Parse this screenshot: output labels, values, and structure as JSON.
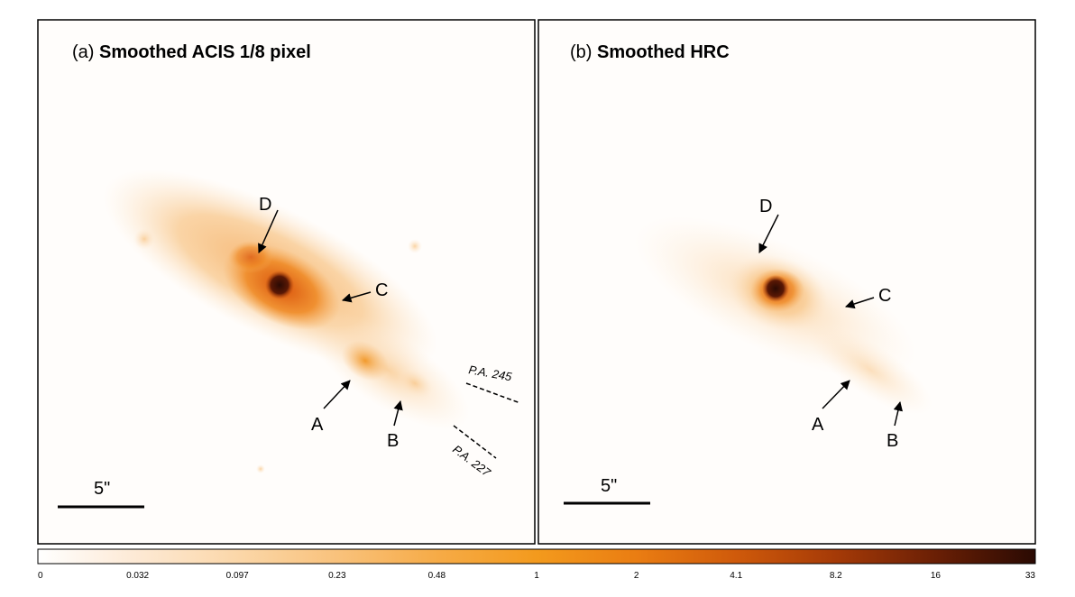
{
  "panels": [
    {
      "id": "a",
      "title_prefix": "(a) ",
      "title_bold": "Smoothed ACIS 1/8 pixel",
      "labels": {
        "A": "A",
        "B": "B",
        "C": "C",
        "D": "D"
      },
      "pa_labels": [
        "P.A. 245",
        "P.A. 227"
      ],
      "scale_label": "5\""
    },
    {
      "id": "b",
      "title_prefix": "(b) ",
      "title_bold": "Smoothed HRC",
      "labels": {
        "A": "A",
        "B": "B",
        "C": "C",
        "D": "D"
      },
      "scale_label": "5\""
    }
  ],
  "colorbar": {
    "ticks": [
      "0",
      "0.032",
      "0.097",
      "0.23",
      "0.48",
      "1",
      "2",
      "4.1",
      "8.2",
      "16",
      "33"
    ],
    "colormap": [
      "#ffffff",
      "#fde9d4",
      "#fbd7a9",
      "#f9c27c",
      "#f6ab47",
      "#f39a1d",
      "#ea7d12",
      "#cf5a0b",
      "#a53a07",
      "#6a1f05",
      "#2a0a03"
    ]
  },
  "colors": {
    "halo": "#fad8ad",
    "mid": "#f3a04a",
    "inner": "#e66a12",
    "core": "#2a0a03"
  }
}
